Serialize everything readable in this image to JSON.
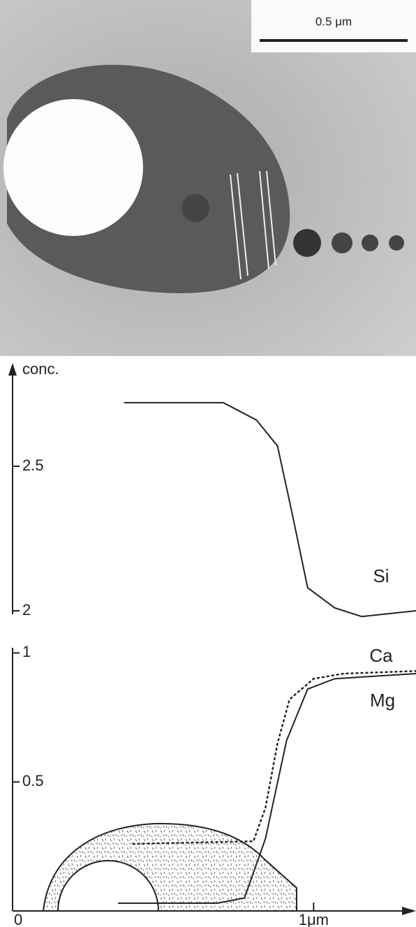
{
  "image": {
    "scale_bar": "0.5 μm"
  },
  "chart_data": [
    {
      "type": "line",
      "y_label": "conc.",
      "xlim": [
        0,
        1.34
      ],
      "ylim": [
        2,
        2.85
      ],
      "yticks": [
        2,
        2.5
      ],
      "series": [
        {
          "name": "Si",
          "color": "#222222",
          "line_style": "solid",
          "x": [
            0.37,
            0.7,
            0.81,
            0.88,
            0.93,
            0.98,
            1.07,
            1.16,
            1.34
          ],
          "values": [
            2.72,
            2.72,
            2.66,
            2.57,
            2.33,
            2.08,
            2.01,
            1.98,
            2.0
          ]
        }
      ]
    },
    {
      "type": "line",
      "xlim": [
        0,
        1.34
      ],
      "ylim": [
        0,
        1.02
      ],
      "yticks": [
        0.5,
        1
      ],
      "xticks": [
        0,
        {
          "value": 1,
          "label": "1μm"
        }
      ],
      "series": [
        {
          "name": "Ca",
          "color": "#222222",
          "line_style": "dotted",
          "x": [
            0.4,
            0.8,
            0.84,
            0.88,
            0.92,
            1.0,
            1.1,
            1.34
          ],
          "values": [
            0.26,
            0.27,
            0.4,
            0.65,
            0.82,
            0.9,
            0.92,
            0.93
          ]
        },
        {
          "name": "Mg",
          "color": "#222222",
          "line_style": "solid",
          "x": [
            0.35,
            0.68,
            0.77,
            0.84,
            0.91,
            0.98,
            1.07,
            1.34
          ],
          "values": [
            0.03,
            0.03,
            0.05,
            0.28,
            0.66,
            0.86,
            0.9,
            0.92
          ]
        }
      ]
    }
  ]
}
